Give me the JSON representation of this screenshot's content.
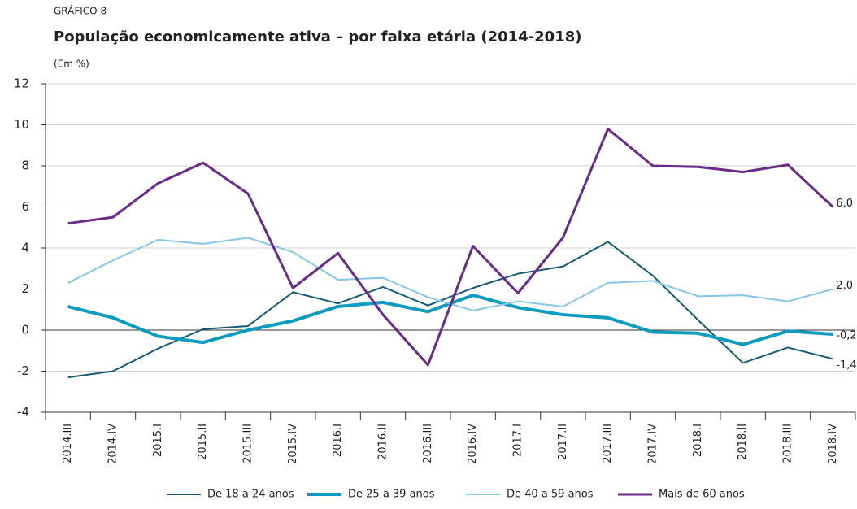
{
  "chart_data": {
    "type": "line",
    "label": "GRÁFICO 8",
    "title": "População economicamente ativa – por faixa etária (2014-2018)",
    "subtitle": "(Em %)",
    "categories": [
      "2014.III",
      "2014.IV",
      "2015.I",
      "2015.II",
      "2015.III",
      "2015.IV",
      "2016.I",
      "2016.II",
      "2016.III",
      "2016.IV",
      "2017.I",
      "2017.II",
      "2017.III",
      "2017.IV",
      "2018.I",
      "2018.II",
      "2018.III",
      "2018.IV"
    ],
    "series": [
      {
        "name": "De 18 a 24 anos",
        "color": "#155a76",
        "width": 2,
        "values": [
          -2.3,
          -2.0,
          -0.9,
          0.05,
          0.2,
          1.85,
          1.3,
          2.1,
          1.2,
          2.05,
          2.75,
          3.1,
          4.3,
          2.65,
          0.5,
          -1.6,
          -0.85,
          -1.4
        ],
        "value_labels": [
          null,
          null,
          null,
          null,
          null,
          null,
          null,
          null,
          null,
          null,
          null,
          null,
          null,
          null,
          null,
          null,
          null,
          "-1,4"
        ]
      },
      {
        "name": "De 25 a 39 anos",
        "color": "#0e9bc0",
        "width": 4,
        "values": [
          1.15,
          0.6,
          -0.3,
          -0.6,
          0.0,
          0.45,
          1.15,
          1.35,
          0.9,
          1.7,
          1.1,
          0.75,
          0.6,
          -0.1,
          -0.15,
          -0.7,
          -0.05,
          -0.2
        ],
        "value_labels": [
          null,
          null,
          null,
          null,
          null,
          null,
          null,
          null,
          null,
          null,
          null,
          null,
          null,
          null,
          null,
          null,
          null,
          "-0,2"
        ]
      },
      {
        "name": "De 40 a 59 anos",
        "color": "#86c6e6",
        "width": 2,
        "values": [
          2.3,
          3.4,
          4.4,
          4.2,
          4.5,
          3.8,
          2.45,
          2.55,
          1.6,
          0.95,
          1.4,
          1.15,
          2.3,
          2.4,
          1.65,
          1.7,
          1.4,
          2.0
        ],
        "value_labels": [
          null,
          null,
          null,
          null,
          null,
          null,
          null,
          null,
          null,
          null,
          null,
          null,
          null,
          null,
          null,
          null,
          null,
          "2,0"
        ]
      },
      {
        "name": "Mais de 60 anos",
        "color": "#6a2a8a",
        "width": 3,
        "values": [
          5.2,
          5.5,
          7.15,
          8.15,
          6.65,
          2.05,
          3.75,
          0.75,
          -1.7,
          4.1,
          1.8,
          4.5,
          9.8,
          8.0,
          7.95,
          7.7,
          8.05,
          6.0
        ],
        "value_labels": [
          null,
          null,
          null,
          null,
          null,
          null,
          null,
          null,
          null,
          null,
          null,
          null,
          null,
          null,
          null,
          null,
          null,
          "6,0"
        ]
      }
    ],
    "ylim": [
      -4,
      12
    ],
    "yticks": [
      -4,
      -2,
      0,
      2,
      4,
      6,
      8,
      10,
      12
    ],
    "grid": true
  }
}
